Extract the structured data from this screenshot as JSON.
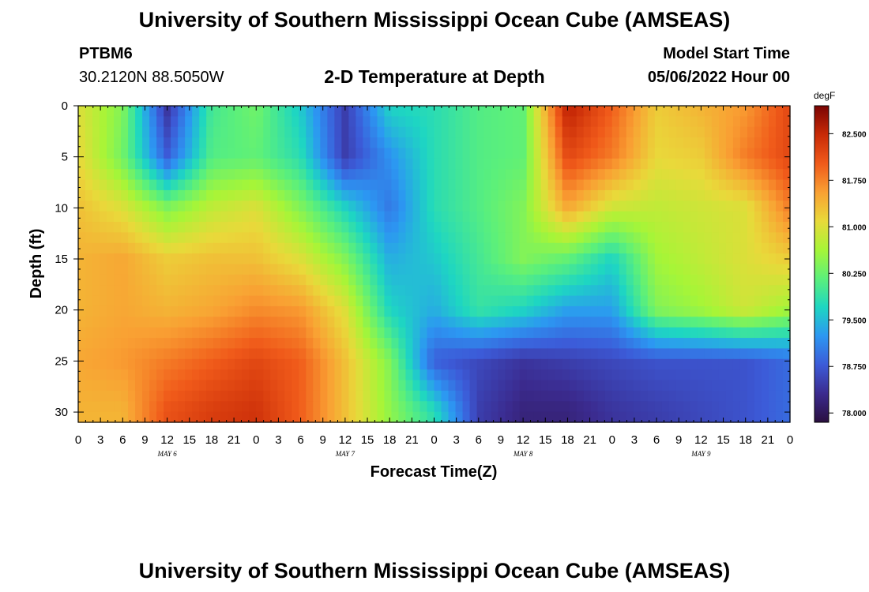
{
  "header": {
    "title": "University of Southern Mississippi Ocean Cube (AMSEAS)",
    "station_id": "PTBM6",
    "coordinates": "30.2120N  88.5050W",
    "subtitle": "2-D Temperature at Depth",
    "model_start_label": "Model Start Time",
    "model_start_value": "05/06/2022 Hour 00"
  },
  "footer": {
    "title": "University of Southern Mississippi Ocean Cube (AMSEAS)"
  },
  "chart_data": {
    "type": "heatmap",
    "title": "2-D Temperature at Depth",
    "xlabel": "Forecast Time(Z)",
    "ylabel": "Depth (ft)",
    "x_hours": [
      0,
      96
    ],
    "x_tick_labels": [
      "0",
      "3",
      "6",
      "9",
      "12",
      "15",
      "18",
      "21",
      "0",
      "3",
      "6",
      "9",
      "12",
      "15",
      "18",
      "21",
      "0",
      "3",
      "6",
      "9",
      "12",
      "15",
      "18",
      "21",
      "0",
      "3",
      "6",
      "9",
      "12",
      "15",
      "18",
      "21",
      "0"
    ],
    "date_labels": [
      {
        "hour": 12,
        "text": "MAY 6"
      },
      {
        "hour": 36,
        "text": "MAY 7"
      },
      {
        "hour": 60,
        "text": "MAY 8"
      },
      {
        "hour": 84,
        "text": "MAY 9"
      }
    ],
    "y_ticks": [
      0,
      5,
      10,
      15,
      20,
      25,
      30
    ],
    "ylim": [
      0,
      31
    ],
    "colorbar": {
      "unit": "degF",
      "ticks": [
        "82.500",
        "81.750",
        "81.000",
        "80.250",
        "79.500",
        "78.750",
        "78.000"
      ],
      "range": [
        77.85,
        82.95
      ],
      "colors": [
        "#2a0f3f",
        "#3b2b8f",
        "#3c5bd8",
        "#2c97f2",
        "#1ed6c2",
        "#5cf07a",
        "#a7f537",
        "#e9d93a",
        "#f9a033",
        "#f05a1a",
        "#c82a07",
        "#7a0403"
      ]
    },
    "values_degF_by_depth_ft": {
      "depths_ft": [
        0,
        5,
        10,
        15,
        20,
        25,
        30
      ],
      "hours": [
        0,
        6,
        12,
        18,
        24,
        30,
        36,
        42,
        48,
        54,
        60,
        66,
        72,
        78,
        84,
        90,
        96
      ],
      "rows": [
        [
          81.0,
          80.4,
          78.4,
          80.0,
          80.3,
          79.6,
          78.5,
          79.7,
          79.8,
          80.1,
          80.2,
          82.6,
          82.0,
          81.2,
          81.4,
          81.6,
          82.2
        ],
        [
          81.1,
          80.3,
          78.8,
          80.1,
          80.2,
          79.8,
          78.5,
          79.2,
          79.8,
          80.1,
          80.2,
          82.2,
          81.8,
          81.1,
          81.2,
          81.8,
          82.2
        ],
        [
          81.3,
          81.0,
          80.4,
          80.8,
          81.0,
          80.4,
          79.7,
          79.0,
          79.8,
          80.1,
          80.4,
          81.5,
          80.9,
          80.8,
          80.9,
          81.0,
          81.8
        ],
        [
          81.4,
          81.5,
          81.2,
          81.3,
          81.3,
          81.0,
          80.4,
          79.4,
          79.6,
          80.0,
          80.4,
          80.2,
          79.7,
          80.6,
          80.8,
          81.0,
          81.2
        ],
        [
          81.4,
          81.5,
          81.4,
          81.5,
          81.7,
          81.6,
          81.0,
          79.7,
          79.4,
          79.9,
          79.7,
          79.3,
          79.3,
          80.4,
          80.6,
          80.9,
          80.6
        ],
        [
          81.5,
          81.6,
          81.8,
          82.0,
          82.2,
          82.0,
          81.3,
          80.4,
          78.8,
          78.6,
          78.4,
          78.5,
          78.6,
          78.7,
          78.7,
          78.7,
          78.9
        ],
        [
          81.4,
          81.4,
          82.1,
          82.3,
          82.4,
          82.0,
          81.3,
          80.5,
          79.8,
          78.5,
          78.2,
          78.2,
          78.4,
          78.5,
          78.6,
          78.7,
          78.9
        ]
      ]
    }
  }
}
